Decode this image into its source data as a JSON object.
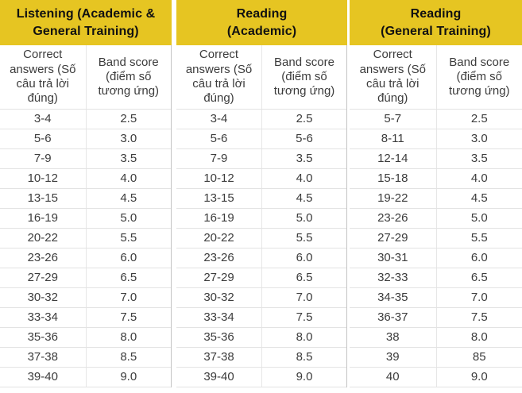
{
  "colors": {
    "header_bg": "#e6c522",
    "header_text": "#111111",
    "cell_text": "#3c3c3c"
  },
  "chart_data": {
    "type": "table",
    "sections": [
      {
        "header": "Listening (Academic & General Training)",
        "header_lines": [
          "Listening (Academic &",
          "General Training)"
        ],
        "columns": [
          "Correct answers (Số câu trả lời đúng)",
          "Band score (điểm số tương ứng)"
        ],
        "rows": [
          [
            "3-4",
            "2.5"
          ],
          [
            "5-6",
            "3.0"
          ],
          [
            "7-9",
            "3.5"
          ],
          [
            "10-12",
            "4.0"
          ],
          [
            "13-15",
            "4.5"
          ],
          [
            "16-19",
            "5.0"
          ],
          [
            "20-22",
            "5.5"
          ],
          [
            "23-26",
            "6.0"
          ],
          [
            "27-29",
            "6.5"
          ],
          [
            "30-32",
            "7.0"
          ],
          [
            "33-34",
            "7.5"
          ],
          [
            "35-36",
            "8.0"
          ],
          [
            "37-38",
            "8.5"
          ],
          [
            "39-40",
            "9.0"
          ]
        ]
      },
      {
        "header": "Reading (Academic)",
        "header_lines": [
          "Reading",
          "(Academic)"
        ],
        "columns": [
          "Correct answers (Số câu trả lời đúng)",
          "Band score (điểm số tương ứng)"
        ],
        "rows": [
          [
            "3-4",
            "2.5"
          ],
          [
            "5-6",
            "5-6"
          ],
          [
            "7-9",
            "3.5"
          ],
          [
            "10-12",
            "4.0"
          ],
          [
            "13-15",
            "4.5"
          ],
          [
            "16-19",
            "5.0"
          ],
          [
            "20-22",
            "5.5"
          ],
          [
            "23-26",
            "6.0"
          ],
          [
            "27-29",
            "6.5"
          ],
          [
            "30-32",
            "7.0"
          ],
          [
            "33-34",
            "7.5"
          ],
          [
            "35-36",
            "8.0"
          ],
          [
            "37-38",
            "8.5"
          ],
          [
            "39-40",
            "9.0"
          ]
        ]
      },
      {
        "header": "Reading (General Training)",
        "header_lines": [
          "Reading",
          "(General Training)"
        ],
        "columns": [
          "Correct answers (Số câu trả lời đúng)",
          "Band score (điểm số tương ứng)"
        ],
        "rows": [
          [
            "5-7",
            "2.5"
          ],
          [
            "8-11",
            "3.0"
          ],
          [
            "12-14",
            "3.5"
          ],
          [
            "15-18",
            "4.0"
          ],
          [
            "19-22",
            "4.5"
          ],
          [
            "23-26",
            "5.0"
          ],
          [
            "27-29",
            "5.5"
          ],
          [
            "30-31",
            "6.0"
          ],
          [
            "32-33",
            "6.5"
          ],
          [
            "34-35",
            "7.0"
          ],
          [
            "36-37",
            "7.5"
          ],
          [
            "38",
            "8.0"
          ],
          [
            "39",
            "85"
          ],
          [
            "40",
            "9.0"
          ]
        ]
      }
    ]
  }
}
